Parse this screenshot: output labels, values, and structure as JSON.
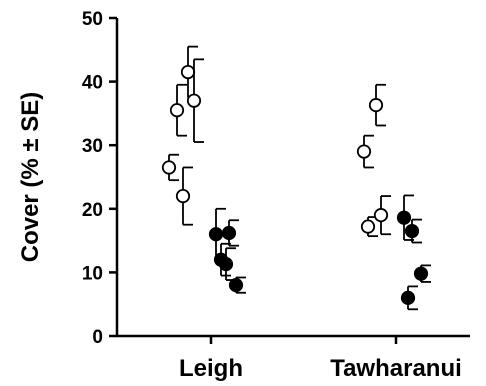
{
  "chart_data": {
    "type": "scatter",
    "title": "",
    "xlabel": "",
    "ylabel": "Cover (% ± SE)",
    "ylim": [
      0,
      50
    ],
    "yticks": [
      0,
      10,
      20,
      30,
      40,
      50
    ],
    "categories": [
      "Leigh",
      "Tawharanui"
    ],
    "grid": false,
    "legend": "none",
    "colors": {
      "open_fill": "#ffffff",
      "filled_fill": "#000000",
      "stroke": "#000000"
    },
    "series": [
      {
        "marker": "open-circle",
        "points": [
          {
            "category": "Leigh",
            "offset": -0.42,
            "y": 26.5,
            "se": 2.0
          },
          {
            "category": "Leigh",
            "offset": -0.34,
            "y": 35.5,
            "se": 4.0
          },
          {
            "category": "Leigh",
            "offset": -0.28,
            "y": 22.0,
            "se": 4.5
          },
          {
            "category": "Leigh",
            "offset": -0.23,
            "y": 41.5,
            "se": 4.0
          },
          {
            "category": "Leigh",
            "offset": -0.17,
            "y": 37.0,
            "se": 6.5
          },
          {
            "category": "Tawharanui",
            "offset": -0.32,
            "y": 29.0,
            "se": 2.5
          },
          {
            "category": "Tawharanui",
            "offset": -0.28,
            "y": 17.2,
            "se": 1.5
          },
          {
            "category": "Tawharanui",
            "offset": -0.2,
            "y": 36.3,
            "se": 3.2
          },
          {
            "category": "Tawharanui",
            "offset": -0.15,
            "y": 19.0,
            "se": 3.0
          }
        ]
      },
      {
        "marker": "filled-circle",
        "points": [
          {
            "category": "Leigh",
            "offset": 0.05,
            "y": 16.0,
            "se": 4.0
          },
          {
            "category": "Leigh",
            "offset": 0.1,
            "y": 12.0,
            "se": 2.5
          },
          {
            "category": "Leigh",
            "offset": 0.15,
            "y": 11.3,
            "se": 2.5
          },
          {
            "category": "Leigh",
            "offset": 0.18,
            "y": 16.2,
            "se": 2.0
          },
          {
            "category": "Leigh",
            "offset": 0.25,
            "y": 8.0,
            "se": 1.2
          },
          {
            "category": "Tawharanui",
            "offset": 0.08,
            "y": 18.6,
            "se": 3.5
          },
          {
            "category": "Tawharanui",
            "offset": 0.12,
            "y": 6.0,
            "se": 1.8
          },
          {
            "category": "Tawharanui",
            "offset": 0.16,
            "y": 16.5,
            "se": 1.8
          },
          {
            "category": "Tawharanui",
            "offset": 0.25,
            "y": 9.8,
            "se": 1.3
          }
        ]
      }
    ]
  }
}
